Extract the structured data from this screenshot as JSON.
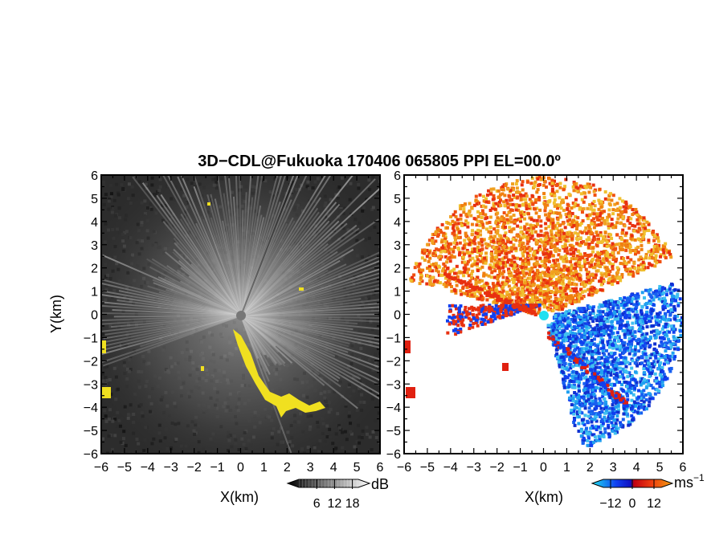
{
  "chart_data": [
    {
      "type": "heatmap",
      "title": "3D−CDL@Fukuoka 170406 065805 PPI EL=00.0º",
      "xlabel": "X(km)",
      "ylabel": "Y(km)",
      "xlim": [
        -6,
        6
      ],
      "ylim": [
        -6,
        6
      ],
      "x_ticks": [
        "−6",
        "−5",
        "−4",
        "−3",
        "−2",
        "−1",
        "0",
        "1",
        "2",
        "3",
        "4",
        "5",
        "6"
      ],
      "y_ticks": [
        "6",
        "5",
        "4",
        "3",
        "2",
        "1",
        "0",
        "−1",
        "−2",
        "−3",
        "−4",
        "−5",
        "−6"
      ],
      "colorbar": {
        "unit": "dB",
        "ticks": [
          "6",
          "12",
          "18"
        ],
        "tick_values": [
          6,
          12,
          18
        ],
        "range": [
          0,
          20
        ],
        "colors": [
          "#000000",
          "#ffffff"
        ]
      },
      "highlight_color": "#f0e020"
    },
    {
      "type": "heatmap",
      "xlabel": "X(km)",
      "xlim": [
        -6,
        6
      ],
      "ylim": [
        -6,
        6
      ],
      "x_ticks": [
        "−6",
        "−5",
        "−4",
        "−3",
        "−2",
        "−1",
        "0",
        "1",
        "2",
        "3",
        "4",
        "5",
        "6"
      ],
      "y_ticks": [
        "6",
        "5",
        "4",
        "3",
        "2",
        "1",
        "0",
        "−1",
        "−2",
        "−3",
        "−4",
        "−5",
        "−6"
      ],
      "colorbar": {
        "unit": "ms",
        "unit_exponent": "−1",
        "ticks": [
          "−12",
          "0",
          "12"
        ],
        "tick_values": [
          -12,
          0,
          12
        ],
        "range": [
          -16,
          16
        ],
        "colors": [
          "#20e0f0",
          "#1040f0",
          "#1010c0",
          "#c00010",
          "#f04010",
          "#f0a010"
        ]
      }
    }
  ]
}
